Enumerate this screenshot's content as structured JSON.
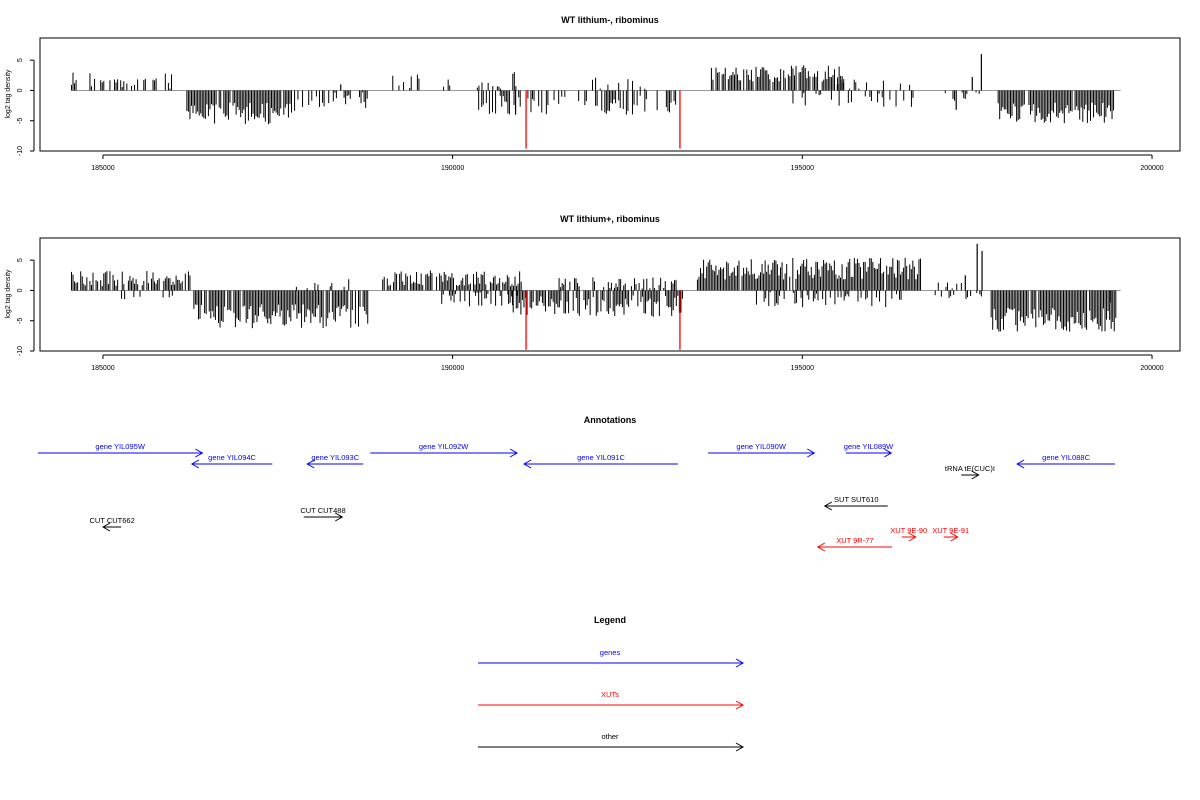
{
  "colors": {
    "genes": "#0000FF",
    "xuts": "#FF0000",
    "other": "#000000",
    "bars": "#000000",
    "highlight_bars": "#FF0000",
    "baseline": "#999999"
  },
  "chart_data": [
    {
      "type": "bar",
      "title": "WT lithium-, ribominus",
      "ylabel": "log2 tag density",
      "xlim": [
        184100,
        200400
      ],
      "ylim": [
        -10,
        8
      ],
      "x_ticks": [
        185000,
        190000,
        195000,
        200000
      ],
      "y_ticks": [
        -10,
        -5,
        0,
        5
      ],
      "x_tick_labels": [
        "185000",
        "190000",
        "195000",
        "200000"
      ],
      "y_tick_labels": [
        "-10",
        "-5",
        "0",
        "5"
      ],
      "segments": [
        {
          "start": 184550,
          "end": 186000,
          "sign": 1,
          "mean": 1.8,
          "amp": 1.3,
          "density": 0.35,
          "bias": 1.5
        },
        {
          "start": 186200,
          "end": 187750,
          "sign": -1,
          "mean": 3.8,
          "amp": 1.8,
          "density": 0.95
        },
        {
          "start": 187700,
          "end": 188800,
          "sign": -1,
          "mean": 1.6,
          "amp": 1.3,
          "density": 0.5
        },
        {
          "start": 189100,
          "end": 191000,
          "sign": 1,
          "mean": 1.4,
          "amp": 1.2,
          "density": 0.3,
          "bias": 1.0
        },
        {
          "start": 190350,
          "end": 193200,
          "sign": -1,
          "mean": 2.4,
          "amp": 1.6,
          "density": 0.55
        },
        {
          "start": 192000,
          "end": 193150,
          "sign": 1,
          "mean": 1.2,
          "amp": 1.0,
          "density": 0.2,
          "bias": 0.8
        },
        {
          "start": 193700,
          "end": 195600,
          "sign": 1,
          "mean": 2.8,
          "amp": 1.4,
          "density": 0.8
        },
        {
          "start": 194800,
          "end": 196600,
          "sign": -1,
          "mean": 1.5,
          "amp": 1.2,
          "density": 0.3
        },
        {
          "start": 195500,
          "end": 196700,
          "sign": 1,
          "mean": 1.5,
          "amp": 1.5,
          "density": 0.25,
          "bias": 1.0
        },
        {
          "start": 197000,
          "end": 197600,
          "sign": -1,
          "mean": 1.0,
          "amp": 0.8,
          "density": 0.2
        },
        {
          "start": 197800,
          "end": 199450,
          "sign": -1,
          "mean": 3.7,
          "amp": 1.7,
          "density": 0.95
        }
      ],
      "spikes": [
        {
          "x": 197200,
          "y": -3.2
        },
        {
          "x": 197430,
          "y": 2.2
        },
        {
          "x": 197560,
          "y": 6.0
        },
        {
          "x": 188400,
          "y": 1.0
        },
        {
          "x": 190900,
          "y": -4.0
        }
      ],
      "highlights": [
        {
          "x": 191050,
          "y": -9.6
        },
        {
          "x": 193250,
          "y": -9.6
        }
      ],
      "seed": 11
    },
    {
      "type": "bar",
      "title": "WT lithium+, ribominus",
      "ylabel": "log2 tag density",
      "xlim": [
        184100,
        200400
      ],
      "ylim": [
        -10,
        8
      ],
      "x_ticks": [
        185000,
        190000,
        195000,
        200000
      ],
      "y_ticks": [
        -10,
        -5,
        0,
        5
      ],
      "x_tick_labels": [
        "185000",
        "190000",
        "195000",
        "200000"
      ],
      "y_tick_labels": [
        "-10",
        "-5",
        "0",
        "5"
      ],
      "segments": [
        {
          "start": 184550,
          "end": 186300,
          "sign": 1,
          "mean": 2.0,
          "amp": 1.3,
          "density": 0.85
        },
        {
          "start": 185200,
          "end": 186000,
          "sign": -1,
          "mean": 1.0,
          "amp": 0.8,
          "density": 0.25
        },
        {
          "start": 186300,
          "end": 188800,
          "sign": -1,
          "mean": 4.3,
          "amp": 2.0,
          "density": 0.95
        },
        {
          "start": 187700,
          "end": 188600,
          "sign": 1,
          "mean": 1.2,
          "amp": 1.0,
          "density": 0.25
        },
        {
          "start": 189000,
          "end": 191000,
          "sign": 1,
          "mean": 2.0,
          "amp": 1.3,
          "density": 0.85
        },
        {
          "start": 189800,
          "end": 191000,
          "sign": -1,
          "mean": 1.5,
          "amp": 1.2,
          "density": 0.4
        },
        {
          "start": 190800,
          "end": 193300,
          "sign": -1,
          "mean": 2.6,
          "amp": 1.8,
          "density": 0.75
        },
        {
          "start": 191500,
          "end": 193200,
          "sign": 1,
          "mean": 1.3,
          "amp": 1.0,
          "density": 0.45
        },
        {
          "start": 193500,
          "end": 196700,
          "sign": 1,
          "mean": 3.6,
          "amp": 1.8,
          "density": 0.95
        },
        {
          "start": 194300,
          "end": 196500,
          "sign": -1,
          "mean": 1.5,
          "amp": 1.3,
          "density": 0.4
        },
        {
          "start": 196900,
          "end": 197600,
          "sign": 1,
          "mean": 0.8,
          "amp": 0.6,
          "density": 0.2
        },
        {
          "start": 196900,
          "end": 197600,
          "sign": -1,
          "mean": 0.9,
          "amp": 0.6,
          "density": 0.2
        },
        {
          "start": 197700,
          "end": 199500,
          "sign": -1,
          "mean": 4.8,
          "amp": 2.0,
          "density": 0.95
        }
      ],
      "spikes": [
        {
          "x": 197500,
          "y": 7.7
        },
        {
          "x": 197570,
          "y": 6.5
        },
        {
          "x": 197330,
          "y": 2.5
        },
        {
          "x": 199400,
          "y": -2.0
        }
      ],
      "highlights": [
        {
          "x": 191050,
          "y": -9.8
        },
        {
          "x": 193250,
          "y": -9.8
        }
      ],
      "seed": 29
    }
  ],
  "annotations": {
    "title": "Annotations",
    "xlim": [
      184100,
      200400
    ],
    "features": [
      {
        "label": "gene YIL095W",
        "start": 184100,
        "end": 186450,
        "dir": "+",
        "cat": "genes",
        "row": 0
      },
      {
        "label": "gene YIL094C",
        "start": 186300,
        "end": 187450,
        "dir": "-",
        "cat": "genes",
        "row": 1
      },
      {
        "label": "gene YIL093C",
        "start": 187950,
        "end": 188750,
        "dir": "-",
        "cat": "genes",
        "row": 1
      },
      {
        "label": "gene YIL092W",
        "start": 188850,
        "end": 190950,
        "dir": "+",
        "cat": "genes",
        "row": 0
      },
      {
        "label": "gene YIL091C",
        "start": 191050,
        "end": 193250,
        "dir": "-",
        "cat": "genes",
        "row": 1
      },
      {
        "label": "gene YIL090W",
        "start": 193680,
        "end": 195200,
        "dir": "+",
        "cat": "genes",
        "row": 0
      },
      {
        "label": "gene YIL089W",
        "start": 195650,
        "end": 196300,
        "dir": "+",
        "cat": "genes",
        "row": 0
      },
      {
        "label": "gene YIL088C",
        "start": 198100,
        "end": 199500,
        "dir": "-",
        "cat": "genes",
        "row": 1
      },
      {
        "label": "tRNA tE(CUC)I",
        "start": 197300,
        "end": 197550,
        "dir": "+",
        "cat": "other",
        "row": 2
      },
      {
        "label": "SUT SUT610",
        "start": 195350,
        "end": 196250,
        "dir": "-",
        "cat": "other",
        "row": 3
      },
      {
        "label": "CUT CUT488",
        "start": 187900,
        "end": 188450,
        "dir": "+",
        "cat": "other",
        "row": 4
      },
      {
        "label": "CUT CUT662",
        "start": 185030,
        "end": 185290,
        "dir": "-",
        "cat": "other",
        "row": 5
      },
      {
        "label": "XUT 9E-90",
        "start": 196450,
        "end": 196650,
        "dir": "+",
        "cat": "xuts",
        "row": 6
      },
      {
        "label": "XUT 9E-91",
        "start": 197050,
        "end": 197250,
        "dir": "+",
        "cat": "xuts",
        "row": 6
      },
      {
        "label": "XUT 9R-77",
        "start": 195250,
        "end": 196310,
        "dir": "-",
        "cat": "xuts",
        "row": 7
      }
    ]
  },
  "legend": {
    "title": "Legend",
    "items": [
      {
        "label": "genes",
        "cat": "genes"
      },
      {
        "label": "XUTs",
        "cat": "xuts"
      },
      {
        "label": "other",
        "cat": "other"
      }
    ]
  }
}
